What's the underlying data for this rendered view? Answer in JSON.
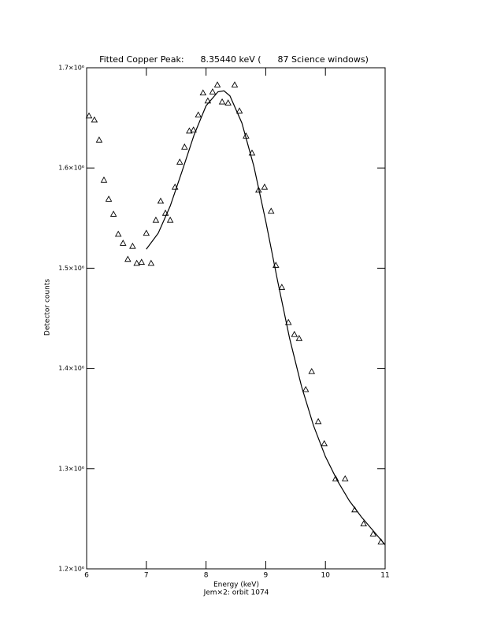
{
  "chart_data": {
    "type": "scatter",
    "title": "Fitted Copper Peak:      8.35440 keV (      87 Science windows)",
    "x_label": "Energy (keV)",
    "subtitle": "Jem×2: orbit 1074",
    "y_label": "Detector counts",
    "xlim": [
      6,
      11
    ],
    "xticks": [
      6,
      7,
      8,
      9,
      10,
      11
    ],
    "ylim": [
      1200000,
      1700000
    ],
    "yticks": [
      {
        "value": 1200000,
        "label": "1.2×10⁶"
      },
      {
        "value": 1300000,
        "label": "1.3×10⁶"
      },
      {
        "value": 1400000,
        "label": "1.4×10⁶"
      },
      {
        "value": 1500000,
        "label": "1.5×10⁶"
      },
      {
        "value": 1600000,
        "label": "1.6×10⁶"
      },
      {
        "value": 1700000,
        "label": "1.7×10⁶"
      }
    ],
    "series": [
      {
        "marker": "triangle",
        "color": "#000000",
        "x": [
          6.04,
          6.13,
          6.21,
          6.29,
          6.37,
          6.45,
          6.53,
          6.61,
          6.69,
          6.77,
          6.84,
          6.92,
          7.0,
          7.08,
          7.16,
          7.24,
          7.32,
          7.4,
          7.48,
          7.56,
          7.64,
          7.72,
          7.79,
          7.87,
          7.95,
          8.03,
          8.11,
          8.19,
          8.27,
          8.37,
          8.48,
          8.56,
          8.67,
          8.77,
          8.88,
          8.98,
          9.09,
          9.17,
          9.27,
          9.38,
          9.48,
          9.56,
          9.67,
          9.77,
          9.88,
          9.98,
          10.17,
          10.33,
          10.49,
          10.64,
          10.8,
          10.93
        ],
        "values": [
          1652000,
          1648000,
          1628000,
          1588000,
          1569000,
          1554000,
          1534000,
          1525000,
          1509000,
          1522000,
          1505000,
          1506000,
          1535000,
          1505000,
          1548000,
          1567000,
          1555000,
          1548000,
          1581000,
          1606000,
          1621000,
          1637000,
          1638000,
          1653000,
          1675000,
          1667000,
          1676000,
          1683000,
          1666000,
          1665000,
          1683000,
          1657000,
          1632000,
          1615000,
          1578000,
          1581000,
          1557000,
          1503000,
          1481000,
          1446000,
          1434000,
          1430000,
          1379000,
          1397000,
          1347000,
          1325000,
          1290000,
          1290000,
          1259000,
          1245000,
          1235000,
          1227000
        ]
      },
      {
        "marker": "line",
        "color": "#000000",
        "x": [
          7.0,
          7.2,
          7.4,
          7.6,
          7.8,
          8.0,
          8.2,
          8.3,
          8.4,
          8.6,
          8.8,
          9.0,
          9.2,
          9.4,
          9.6,
          9.8,
          10.0,
          10.2,
          10.4,
          10.6,
          10.8,
          11.0
        ],
        "values": [
          1519000,
          1535000,
          1562000,
          1597000,
          1633000,
          1662000,
          1676000,
          1677000,
          1672000,
          1645000,
          1602000,
          1547000,
          1487000,
          1430000,
          1382000,
          1343000,
          1312000,
          1288000,
          1268000,
          1252000,
          1238000,
          1224000
        ]
      }
    ]
  }
}
